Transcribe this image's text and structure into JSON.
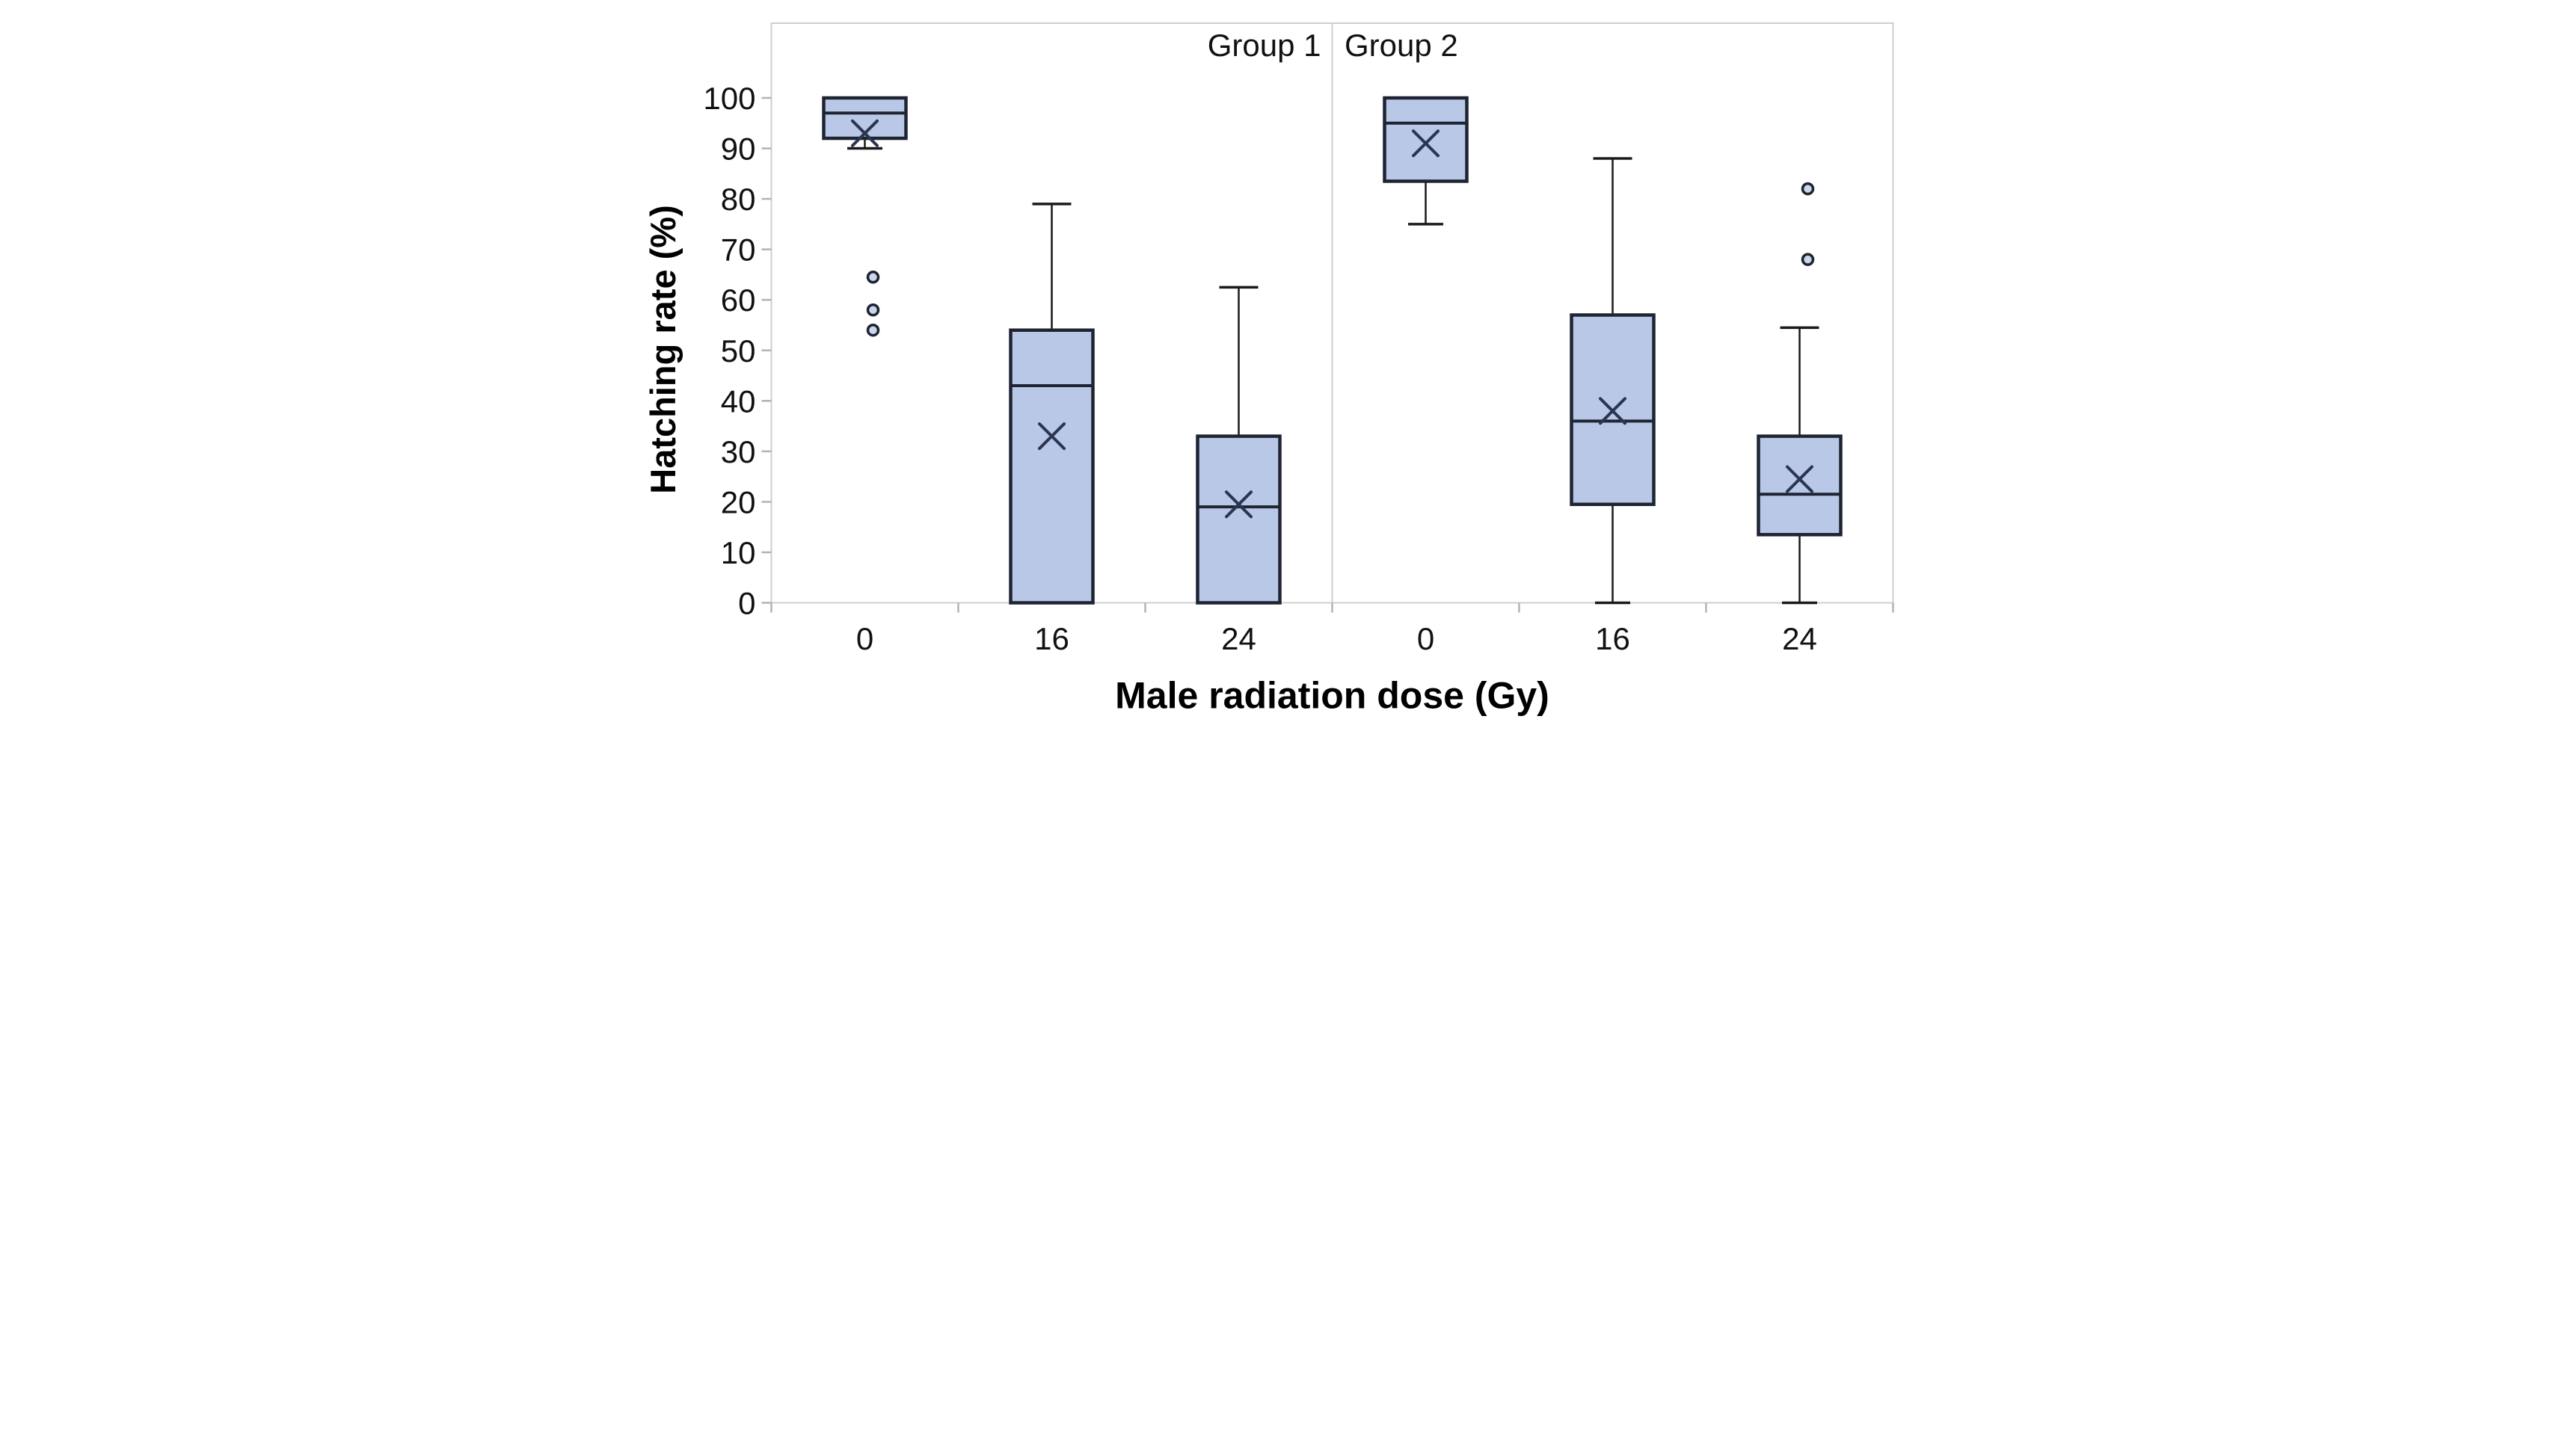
{
  "figure": {
    "panel_labels": {
      "group1": "Group 1",
      "group2": "Group 2"
    },
    "y_axis": {
      "title": "Hatching rate (%)",
      "min": 0,
      "max": 100,
      "tick_step": 10,
      "tick_labels": [
        "0",
        "10",
        "20",
        "30",
        "40",
        "50",
        "60",
        "70",
        "80",
        "90",
        "100"
      ]
    },
    "x_axis": {
      "title": "Male radiation dose (Gy)",
      "categories": [
        "0",
        "16",
        "24"
      ]
    }
  },
  "chart_data": {
    "type": "box",
    "xlabel": "Male radiation dose (Gy)",
    "ylabel": "Hatching rate (%)",
    "ylim": [
      0,
      100
    ],
    "grid": false,
    "panels": [
      {
        "label": "Group 1",
        "boxes": [
          {
            "category": "0",
            "whisker_low": 90,
            "q1": 92,
            "median": 97,
            "q3": 100,
            "whisker_high": 100,
            "mean": 93,
            "outliers": [
              64.5,
              58,
              54
            ]
          },
          {
            "category": "16",
            "whisker_low": 0,
            "q1": 0,
            "median": 43,
            "q3": 54,
            "whisker_high": 79,
            "mean": 33,
            "outliers": []
          },
          {
            "category": "24",
            "whisker_low": 0,
            "q1": 0,
            "median": 19,
            "q3": 33,
            "whisker_high": 62.5,
            "mean": 19.5,
            "outliers": []
          }
        ]
      },
      {
        "label": "Group 2",
        "boxes": [
          {
            "category": "0",
            "whisker_low": 75,
            "q1": 83.5,
            "median": 95,
            "q3": 100,
            "whisker_high": 100,
            "mean": 91,
            "outliers": []
          },
          {
            "category": "16",
            "whisker_low": 0,
            "q1": 19.5,
            "median": 36,
            "q3": 57,
            "whisker_high": 88,
            "mean": 38,
            "outliers": []
          },
          {
            "category": "24",
            "whisker_low": 0,
            "q1": 13.5,
            "median": 21.5,
            "q3": 33,
            "whisker_high": 54.5,
            "mean": 24.5,
            "outliers": [
              82,
              68
            ]
          }
        ]
      }
    ]
  },
  "colors": {
    "box_fill": "#b8c8e6",
    "box_stroke": "#1f2433",
    "median_stroke": "#1f2433",
    "whisker_stroke": "#1a1a1a",
    "mean_stroke": "#2b3550",
    "outlier_stroke": "#1f2433",
    "outlier_fill": "#ccd7eb",
    "frame": "#cfcfcf",
    "tick": "#b3b3b3",
    "text": "#111111",
    "background": "#ffffff"
  }
}
